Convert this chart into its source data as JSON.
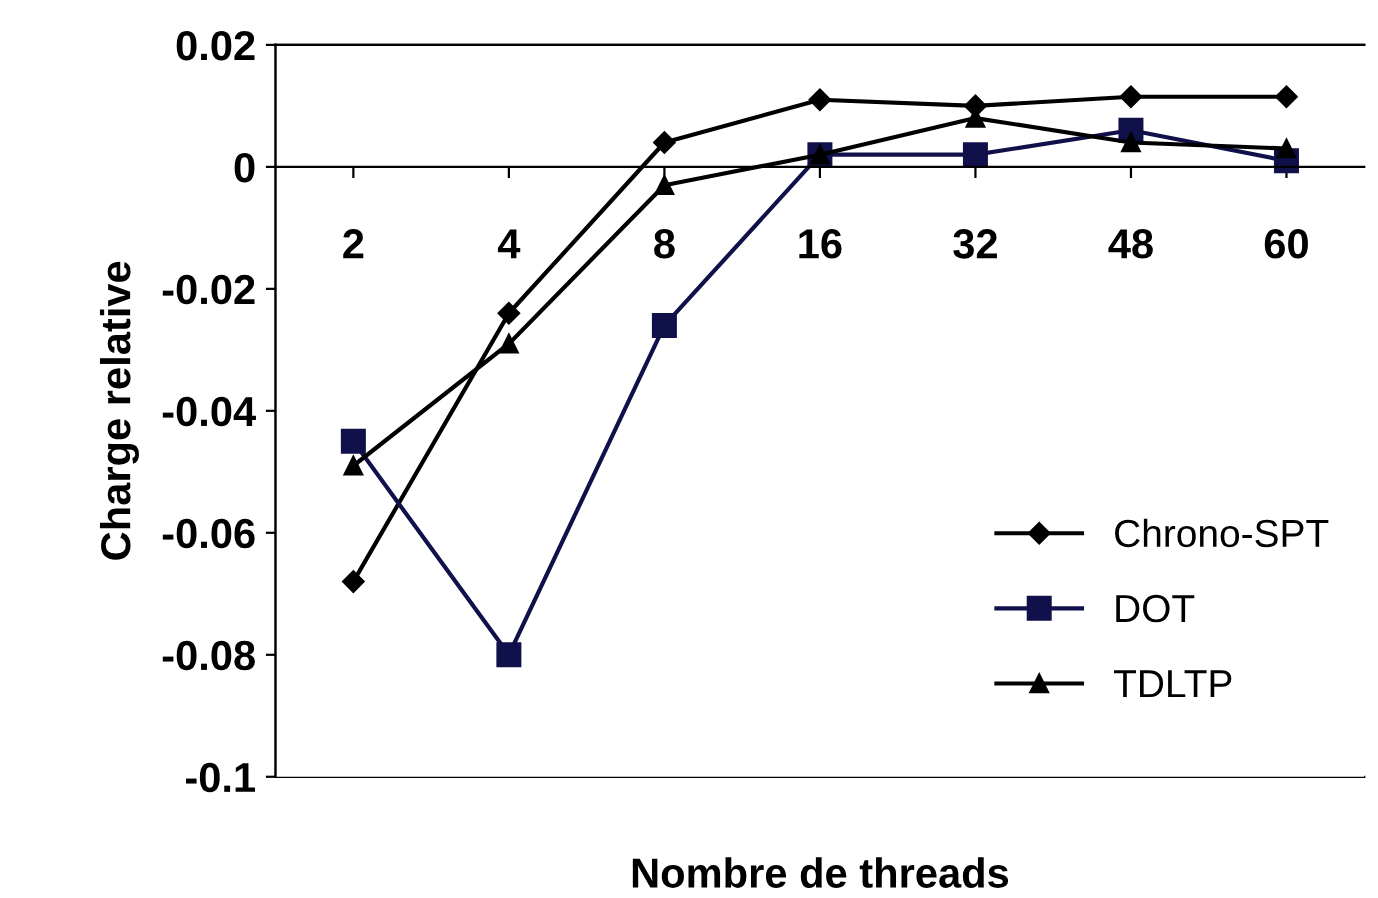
{
  "chart_data": {
    "type": "line",
    "xlabel": "Nombre de threads",
    "ylabel": "Charge relative",
    "categories": [
      "2",
      "4",
      "8",
      "16",
      "32",
      "48",
      "60"
    ],
    "series": [
      {
        "name": "Chrono-SPT",
        "color": "#000000",
        "marker": "diamond",
        "values": [
          -0.068,
          -0.024,
          0.004,
          0.011,
          0.01,
          0.0115,
          0.0115
        ]
      },
      {
        "name": "DOT",
        "color": "#10104a",
        "marker": "square",
        "values": [
          -0.045,
          -0.08,
          -0.026,
          0.002,
          0.002,
          0.006,
          0.001
        ]
      },
      {
        "name": "TDLTP",
        "color": "#000000",
        "marker": "triangle",
        "values": [
          -0.049,
          -0.029,
          -0.003,
          0.002,
          0.008,
          0.004,
          0.003
        ]
      }
    ],
    "ylim": [
      -0.1,
      0.02
    ],
    "yticks": [
      {
        "value": -0.1,
        "label": "-0.1"
      },
      {
        "value": -0.08,
        "label": "-0.08"
      },
      {
        "value": -0.06,
        "label": "-0.06"
      },
      {
        "value": -0.04,
        "label": "-0.04"
      },
      {
        "value": -0.02,
        "label": "-0.02"
      },
      {
        "value": 0,
        "label": "0"
      },
      {
        "value": 0.02,
        "label": "0.02"
      }
    ],
    "grid": false,
    "legend": "bottom right",
    "line_style": "solid"
  }
}
